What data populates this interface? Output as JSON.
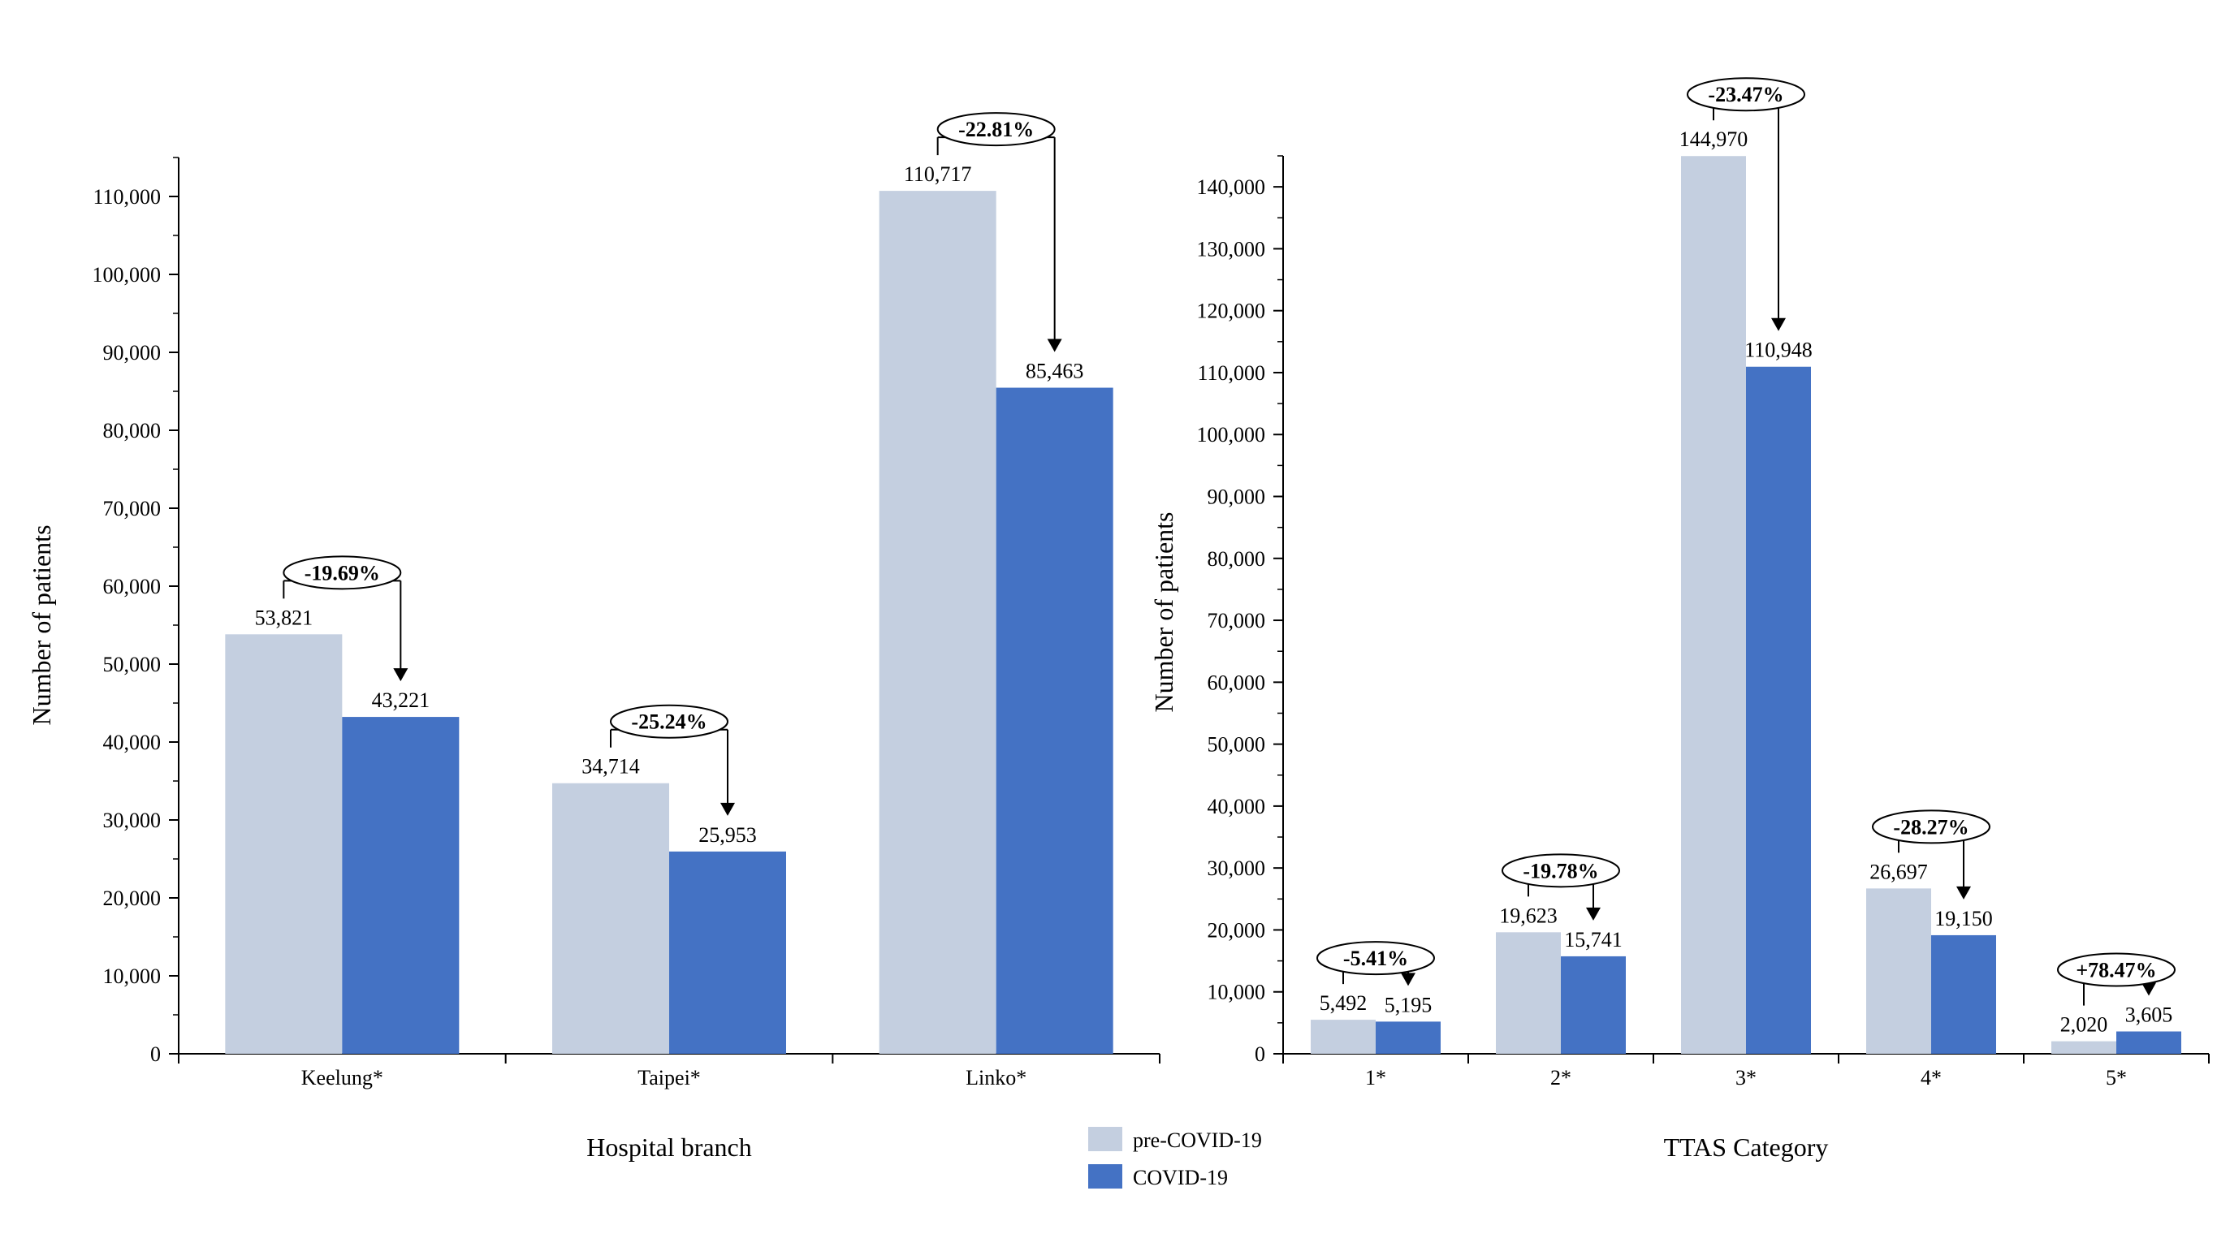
{
  "colors": {
    "pre": "#c4cfe0",
    "covid": "#4472c4",
    "axis": "#000000"
  },
  "legend": {
    "items": [
      {
        "label": "pre-COVID-19",
        "color": "#c4cfe0"
      },
      {
        "label": "COVID-19",
        "color": "#4472c4"
      }
    ]
  },
  "chart_data": [
    {
      "type": "bar",
      "xlabel": "Hospital branch",
      "ylabel": "Number of patients",
      "ylim": [
        0,
        115000
      ],
      "yticks": [
        0,
        10000,
        20000,
        30000,
        40000,
        50000,
        60000,
        70000,
        80000,
        90000,
        100000,
        110000
      ],
      "ytick_labels": [
        "0",
        "10,000",
        "20,000",
        "30,000",
        "40,000",
        "50,000",
        "60,000",
        "70,000",
        "80,000",
        "90,000",
        "100,000",
        "110,000"
      ],
      "categories": [
        "Keelung*",
        "Taipei*",
        "Linko*"
      ],
      "series": [
        {
          "name": "pre-COVID-19",
          "values": [
            53821,
            34714,
            110717
          ],
          "labels": [
            "53,821",
            "34,714",
            "110,717"
          ]
        },
        {
          "name": "COVID-19",
          "values": [
            43221,
            25953,
            85463
          ],
          "labels": [
            "43,221",
            "25,953",
            "85,463"
          ]
        }
      ],
      "changes": [
        "-19.69%",
        "-25.24%",
        "-22.81%"
      ]
    },
    {
      "type": "bar",
      "xlabel": "TTAS Category",
      "ylabel": "Number of patients",
      "ylim": [
        0,
        145000
      ],
      "yticks": [
        0,
        10000,
        20000,
        30000,
        40000,
        50000,
        60000,
        70000,
        80000,
        90000,
        100000,
        110000,
        120000,
        130000,
        140000
      ],
      "ytick_labels": [
        "0",
        "10,000",
        "20,000",
        "30,000",
        "40,000",
        "50,000",
        "60,000",
        "70,000",
        "80,000",
        "90,000",
        "100,000",
        "110,000",
        "120,000",
        "130,000",
        "140,000"
      ],
      "categories": [
        "1*",
        "2*",
        "3*",
        "4*",
        "5*"
      ],
      "series": [
        {
          "name": "pre-COVID-19",
          "values": [
            5492,
            19623,
            144970,
            26697,
            2020
          ],
          "labels": [
            "5,492",
            "19,623",
            "144,970",
            "26,697",
            "2,020"
          ]
        },
        {
          "name": "COVID-19",
          "values": [
            5195,
            15741,
            110948,
            19150,
            3605
          ],
          "labels": [
            "5,195",
            "15,741",
            "110,948",
            "19,150",
            "3,605"
          ]
        }
      ],
      "changes": [
        "-5.41%",
        "-19.78%",
        "-23.47%",
        "-28.27%",
        "+78.47%"
      ]
    }
  ]
}
